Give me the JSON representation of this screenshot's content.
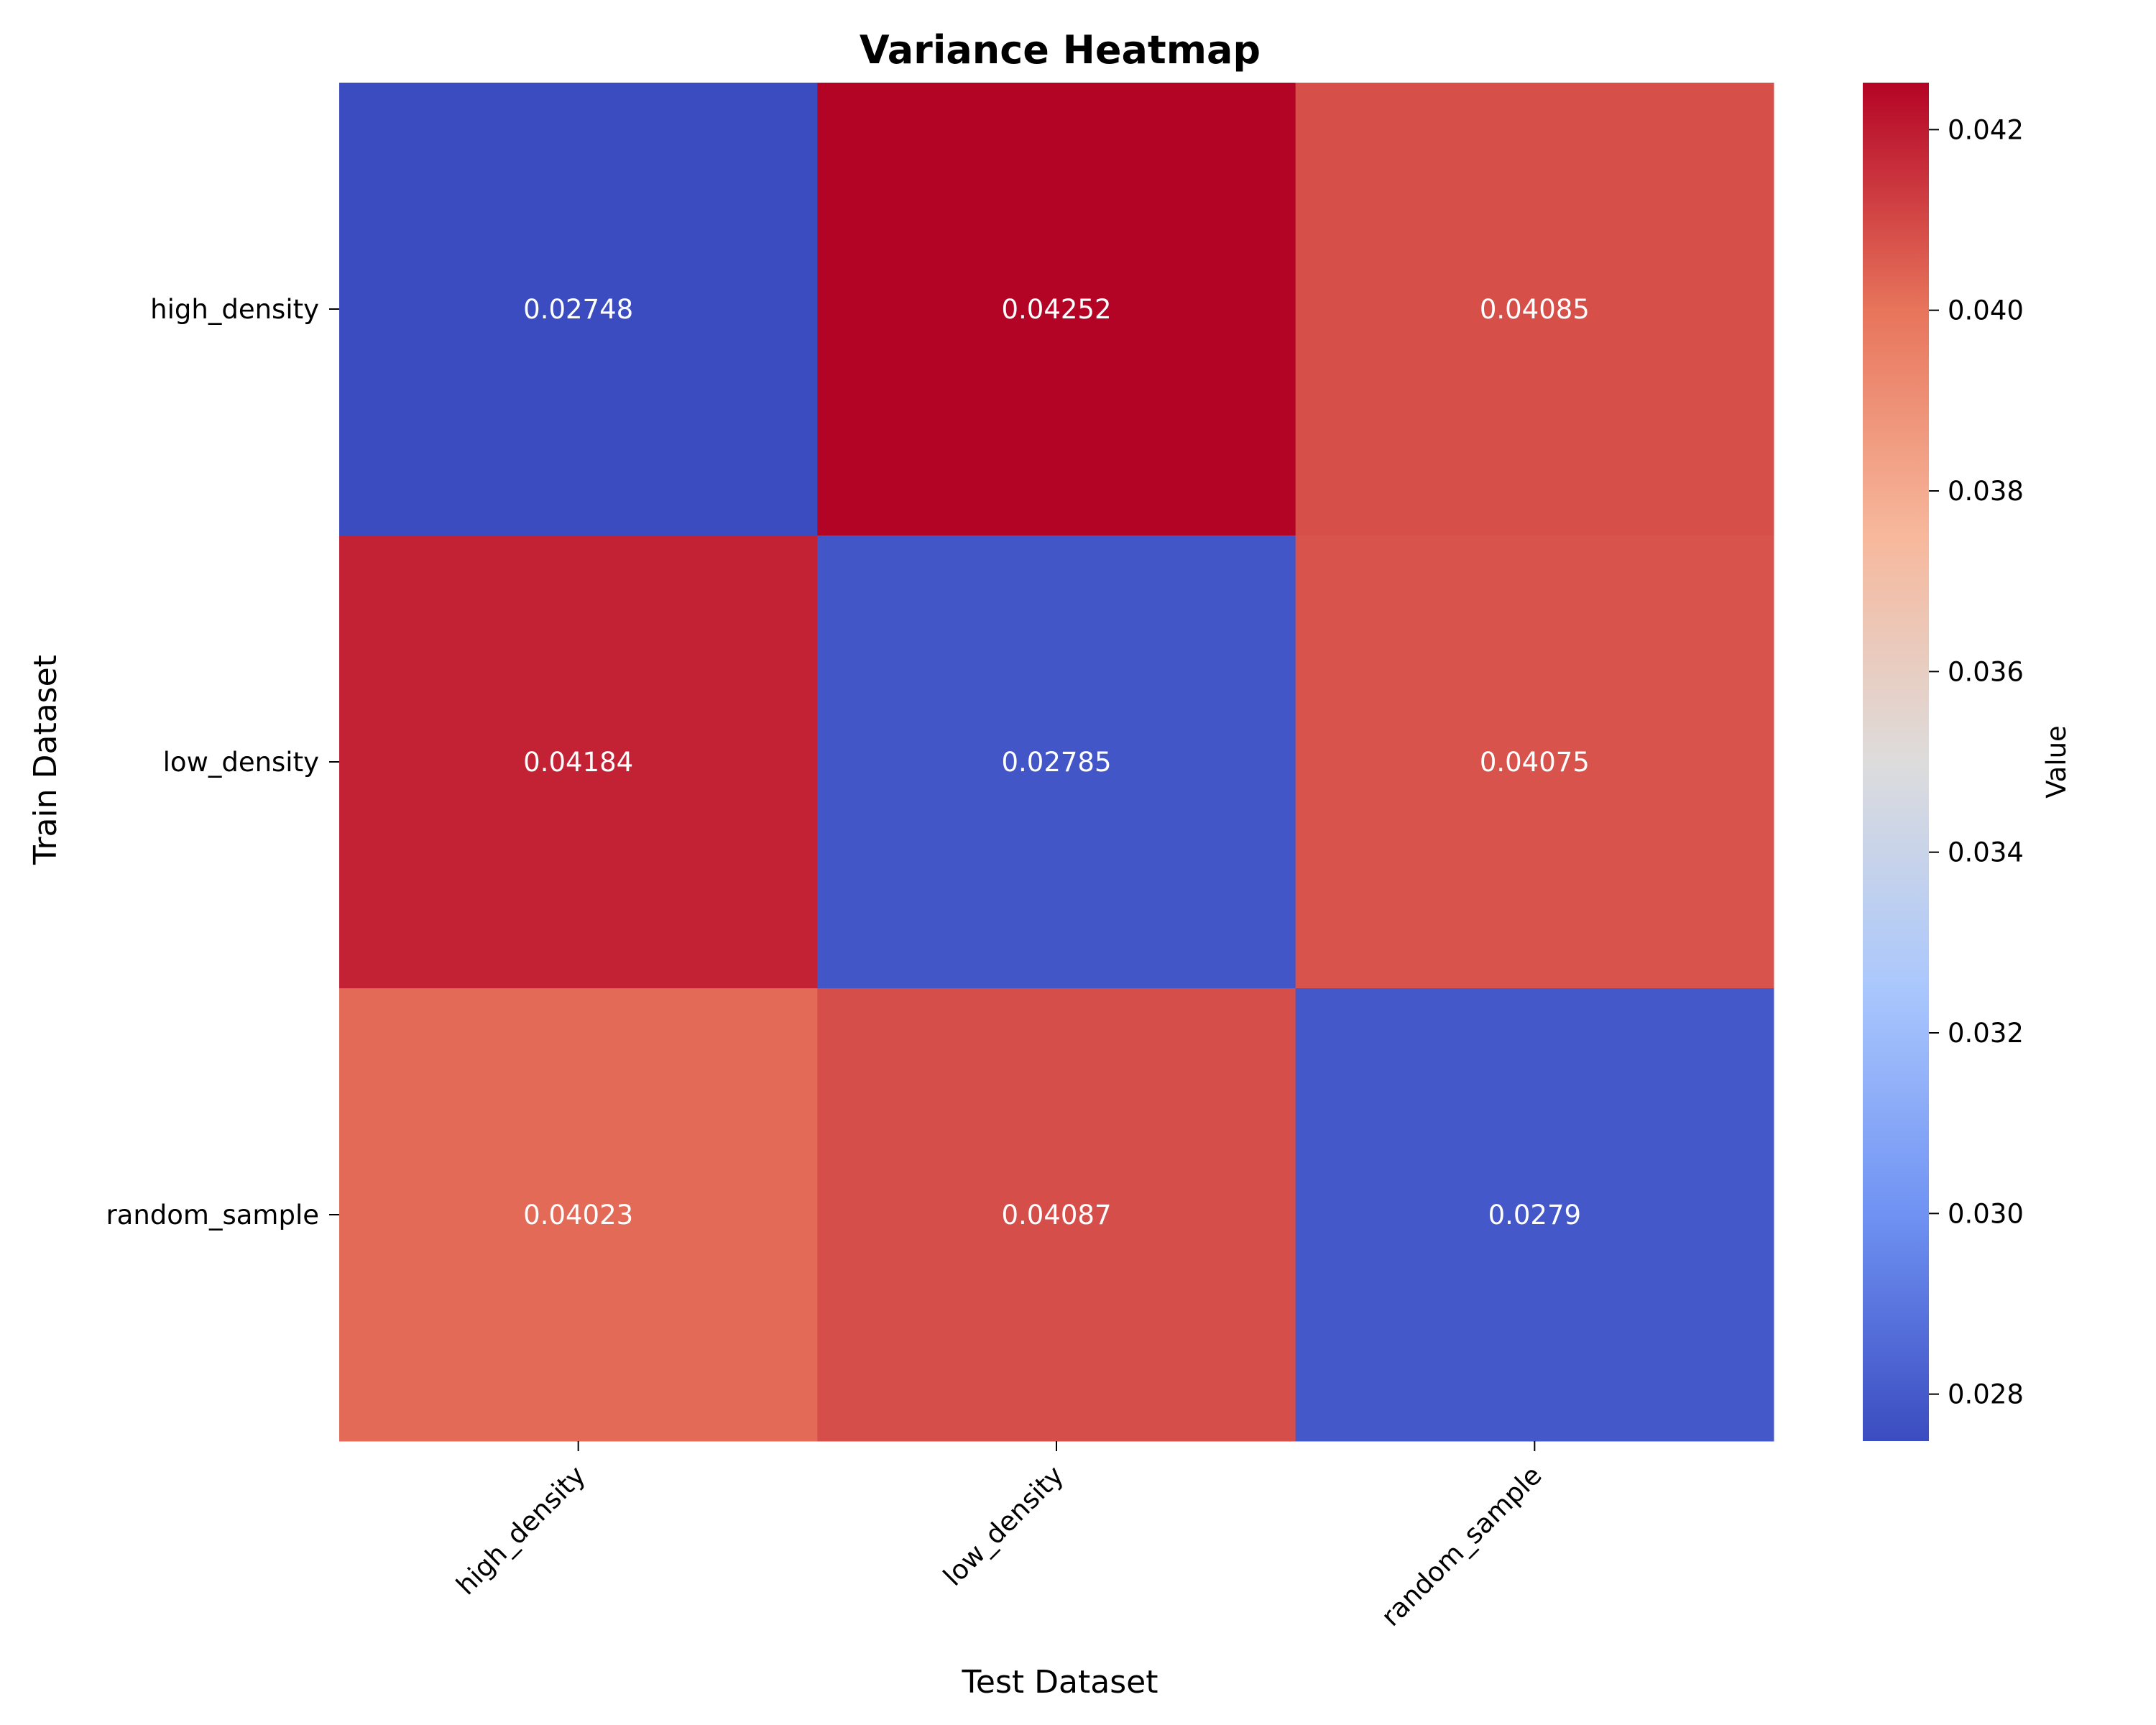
{
  "chart_data": {
    "type": "heatmap",
    "title": "Variance Heatmap",
    "xlabel": "Test Dataset",
    "ylabel": "Train Dataset",
    "x_categories": [
      "high_density",
      "low_density",
      "random_sample"
    ],
    "y_categories": [
      "high_density",
      "low_density",
      "random_sample"
    ],
    "values": [
      [
        0.02748,
        0.04252,
        0.04085
      ],
      [
        0.04184,
        0.02785,
        0.04075
      ],
      [
        0.04023,
        0.04087,
        0.0279
      ]
    ],
    "cell_labels": [
      [
        "0.02748",
        "0.04252",
        "0.04085"
      ],
      [
        "0.04184",
        "0.02785",
        "0.04075"
      ],
      [
        "0.04023",
        "0.04087",
        "0.0279"
      ]
    ],
    "colorbar": {
      "label": "Value",
      "range": [
        0.02748,
        0.04252
      ],
      "ticks": [
        0.028,
        0.03,
        0.032,
        0.034,
        0.036,
        0.038,
        0.04,
        0.042
      ],
      "tick_labels": [
        "0.028",
        "0.030",
        "0.032",
        "0.034",
        "0.036",
        "0.038",
        "0.040",
        "0.042"
      ],
      "colormap": "coolwarm",
      "colormap_stops": [
        "#3b4cc0",
        "#6f92f3",
        "#aac7fd",
        "#dddcdc",
        "#f7b89c",
        "#e7745b",
        "#b40426"
      ]
    }
  }
}
